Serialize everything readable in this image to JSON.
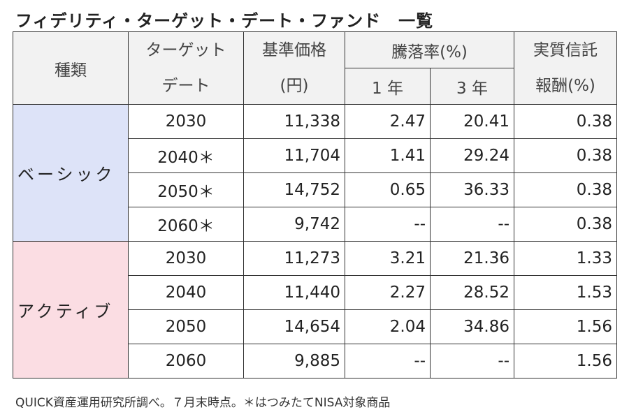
{
  "title": "フィデリティ・ターゲット・デート・ファンド　一覧",
  "table": {
    "header": {
      "type": "種類",
      "target_date": [
        "ターゲット",
        "デート"
      ],
      "price": [
        "基準価格",
        "(円)"
      ],
      "return": "騰落率(%)",
      "return_1y": "1 年",
      "return_3y": "3 年",
      "fee": [
        "実質信託",
        "報酬(%)"
      ]
    },
    "groups": [
      {
        "name": "ベーシック",
        "rows": [
          [
            "2030",
            "11,338",
            "2.47",
            "20.41",
            "0.38"
          ],
          [
            "2040＊",
            "11,704",
            "1.41",
            "29.24",
            "0.38"
          ],
          [
            "2050＊",
            "14,752",
            "0.65",
            "36.33",
            "0.38"
          ],
          [
            "2060＊",
            "9,742",
            "--",
            "--",
            "0.38"
          ]
        ]
      },
      {
        "name": "アクティブ",
        "rows": [
          [
            "2030",
            "11,273",
            "3.21",
            "21.36",
            "1.33"
          ],
          [
            "2040",
            "11,440",
            "2.27",
            "28.52",
            "1.53"
          ],
          [
            "2050",
            "14,654",
            "2.04",
            "34.86",
            "1.56"
          ],
          [
            "2060",
            "9,885",
            "--",
            "--",
            "1.56"
          ]
        ]
      }
    ]
  },
  "footnote": "QUICK資産運用研究所調べ。７月末時点。＊はつみたてNISA対象商品"
}
